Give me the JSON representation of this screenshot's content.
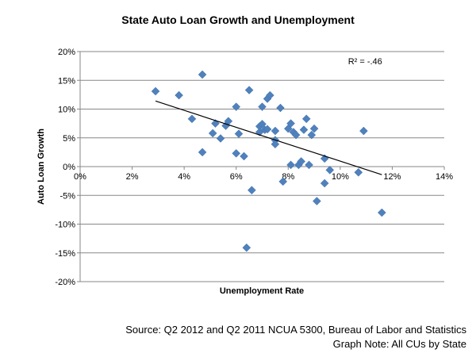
{
  "chart_data": {
    "type": "scatter",
    "title": "State Auto Loan Growth and Unemployment",
    "xlabel": "Unemployment Rate",
    "ylabel": "Auto Loan Growth",
    "xlim": [
      0,
      14
    ],
    "ylim": [
      -20,
      20
    ],
    "x_ticks": [
      0,
      2,
      4,
      6,
      8,
      10,
      12,
      14
    ],
    "y_ticks": [
      20,
      15,
      10,
      5,
      0,
      -5,
      -10,
      -15,
      -20
    ],
    "x_tick_labels": [
      "0%",
      "2%",
      "4%",
      "6%",
      "8%",
      "10%",
      "12%",
      "14%"
    ],
    "y_tick_labels": [
      "20%",
      "15%",
      "10%",
      "5%",
      "0%",
      "-5%",
      "-10%",
      "-15%",
      "-20%"
    ],
    "grid": "horizontal",
    "legend": "none",
    "marker_color": "#4f81bd",
    "trendline": {
      "x": [
        2.9,
        11.6
      ],
      "y": [
        11.4,
        -1.4
      ],
      "label": "R² = -.46",
      "label_x": 10.3,
      "label_y": 17.8
    },
    "points": [
      {
        "x": 2.9,
        "y": 13.1
      },
      {
        "x": 3.8,
        "y": 12.4
      },
      {
        "x": 4.3,
        "y": 8.3
      },
      {
        "x": 4.7,
        "y": 16.0
      },
      {
        "x": 4.7,
        "y": 2.5
      },
      {
        "x": 5.1,
        "y": 5.8
      },
      {
        "x": 5.2,
        "y": 7.5
      },
      {
        "x": 5.4,
        "y": 4.9
      },
      {
        "x": 5.6,
        "y": 7.1
      },
      {
        "x": 5.7,
        "y": 7.9
      },
      {
        "x": 6.0,
        "y": 10.4
      },
      {
        "x": 6.0,
        "y": 2.3
      },
      {
        "x": 6.1,
        "y": 5.7
      },
      {
        "x": 6.3,
        "y": 1.8
      },
      {
        "x": 6.5,
        "y": 13.3
      },
      {
        "x": 6.6,
        "y": -4.1
      },
      {
        "x": 6.4,
        "y": -14.1
      },
      {
        "x": 6.9,
        "y": 7.0
      },
      {
        "x": 7.0,
        "y": 7.4
      },
      {
        "x": 6.9,
        "y": 6.0
      },
      {
        "x": 7.0,
        "y": 10.4
      },
      {
        "x": 7.1,
        "y": 6.4
      },
      {
        "x": 7.2,
        "y": 11.8
      },
      {
        "x": 7.3,
        "y": 12.4
      },
      {
        "x": 7.2,
        "y": 6.5
      },
      {
        "x": 7.5,
        "y": 4.6
      },
      {
        "x": 7.5,
        "y": 3.9
      },
      {
        "x": 7.5,
        "y": 6.2
      },
      {
        "x": 7.7,
        "y": 10.2
      },
      {
        "x": 7.8,
        "y": -2.6
      },
      {
        "x": 8.0,
        "y": 6.6
      },
      {
        "x": 8.1,
        "y": 7.5
      },
      {
        "x": 8.1,
        "y": 0.3
      },
      {
        "x": 8.2,
        "y": 6.0
      },
      {
        "x": 8.3,
        "y": 5.5
      },
      {
        "x": 8.4,
        "y": 0.3
      },
      {
        "x": 8.6,
        "y": 6.4
      },
      {
        "x": 8.5,
        "y": 0.9
      },
      {
        "x": 8.7,
        "y": 8.3
      },
      {
        "x": 8.8,
        "y": 0.3
      },
      {
        "x": 8.9,
        "y": 5.5
      },
      {
        "x": 9.0,
        "y": 6.6
      },
      {
        "x": 9.1,
        "y": -6.0
      },
      {
        "x": 9.4,
        "y": 1.4
      },
      {
        "x": 9.4,
        "y": -2.9
      },
      {
        "x": 9.6,
        "y": -0.6
      },
      {
        "x": 10.7,
        "y": -1.0
      },
      {
        "x": 10.9,
        "y": 6.2
      },
      {
        "x": 11.6,
        "y": -8.0
      }
    ]
  },
  "source": {
    "line1": "Source: Q2 2012  and Q2 2011  NCUA 5300,  Bureau of Labor and Statistics",
    "line2": "Graph Note: All CUs by State"
  }
}
